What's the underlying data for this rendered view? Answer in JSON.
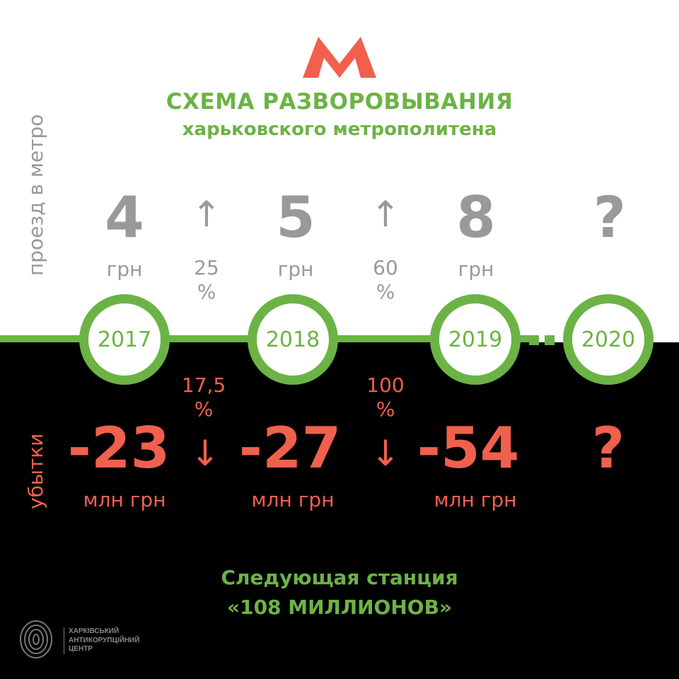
{
  "header": {
    "logo": "M",
    "title": "СХЕМА РАЗВОРОВЫВАНИЯ",
    "subtitle": "харьковского метрополитена"
  },
  "fare_label": "проезд в метро",
  "loss_label": "убытки",
  "years": [
    "2017",
    "2018",
    "2019",
    "2020"
  ],
  "fares": [
    {
      "value": "4",
      "unit": "грн"
    },
    {
      "value": "5",
      "unit": "грн"
    },
    {
      "value": "8",
      "unit": "грн"
    },
    {
      "value": "?",
      "unit": ""
    }
  ],
  "fare_changes": [
    {
      "value": "25",
      "unit": "%"
    },
    {
      "value": "60",
      "unit": "%"
    }
  ],
  "losses": [
    {
      "value": "-23",
      "unit": "млн грн"
    },
    {
      "value": "-27",
      "unit": "млн грн"
    },
    {
      "value": "-54",
      "unit": "млн грн"
    },
    {
      "value": "?",
      "unit": ""
    }
  ],
  "loss_changes": [
    {
      "value": "17,5",
      "unit": "%"
    },
    {
      "value": "100",
      "unit": "%"
    }
  ],
  "footer": {
    "line1": "Следующая станция",
    "line2": "«108 МИЛЛИОНОВ»"
  },
  "org": {
    "line1": "ХАРКІВСЬКИЙ",
    "line2": "АНТИКОРУПЦІЙНИЙ",
    "line3": "ЦЕНТР"
  },
  "colors": {
    "green": "#6cb345",
    "red": "#f0604d",
    "gray": "#999999"
  }
}
